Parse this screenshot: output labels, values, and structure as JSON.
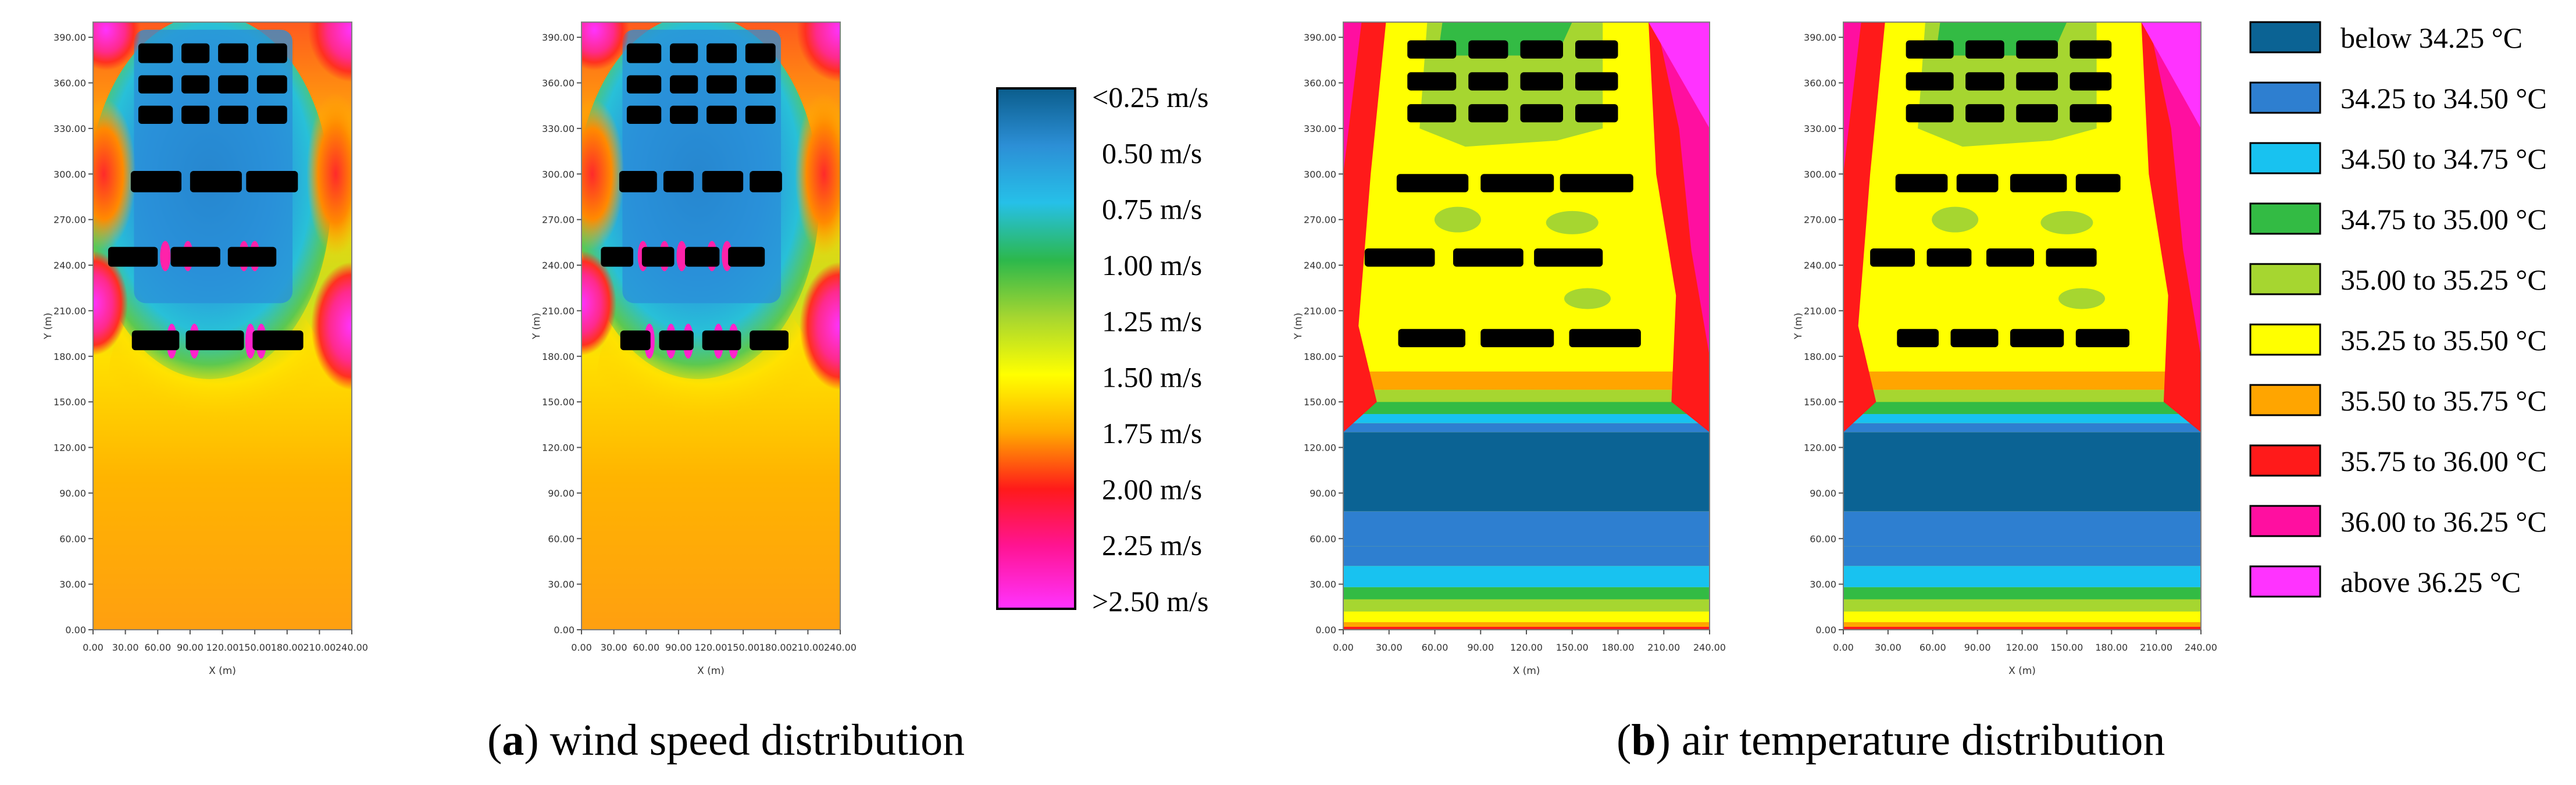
{
  "chart_data": [
    {
      "type": "heatmap",
      "panel": "a",
      "title": "wind speed distribution",
      "caption_letter": "a",
      "xlabel": "X (m)",
      "ylabel": "Y (m)",
      "xlim": [
        0,
        240
      ],
      "ylim": [
        0,
        400
      ],
      "x_ticks": [
        "0.00",
        "30.00",
        "60.00",
        "90.00",
        "120.00",
        "150.00",
        "180.00",
        "210.00",
        "240.00"
      ],
      "y_ticks": [
        "0.00",
        "30.00",
        "60.00",
        "90.00",
        "120.00",
        "150.00",
        "180.00",
        "210.00",
        "240.00",
        "270.00",
        "300.00",
        "330.00",
        "360.00",
        "390.00"
      ],
      "legend_title": "",
      "legend_labels": [
        "<0.25 m/s",
        "0.50 m/s",
        "0.75 m/s",
        "1.00 m/s",
        "1.25 m/s",
        "1.50 m/s",
        "1.75 m/s",
        "2.00 m/s",
        "2.25 m/s",
        ">2.50 m/s"
      ],
      "legend_colors": [
        "#0b5d8c",
        "#2c8fd6",
        "#26c0e8",
        "#2cb84c",
        "#a6d630",
        "#ffff00",
        "#ffaa00",
        "#ff1a1a",
        "#ff1493",
        "#ff33ff"
      ],
      "plots": [
        {
          "name": "layout-1",
          "buildings": [
            {
              "x0": 42,
              "x1": 74,
              "y0": 373,
              "y1": 386
            },
            {
              "x0": 82,
              "x1": 108,
              "y0": 373,
              "y1": 386
            },
            {
              "x0": 116,
              "x1": 144,
              "y0": 373,
              "y1": 386
            },
            {
              "x0": 152,
              "x1": 180,
              "y0": 373,
              "y1": 386
            },
            {
              "x0": 42,
              "x1": 74,
              "y0": 353,
              "y1": 365
            },
            {
              "x0": 82,
              "x1": 108,
              "y0": 353,
              "y1": 365
            },
            {
              "x0": 116,
              "x1": 144,
              "y0": 353,
              "y1": 365
            },
            {
              "x0": 152,
              "x1": 180,
              "y0": 353,
              "y1": 365
            },
            {
              "x0": 42,
              "x1": 74,
              "y0": 333,
              "y1": 345
            },
            {
              "x0": 82,
              "x1": 108,
              "y0": 333,
              "y1": 345
            },
            {
              "x0": 116,
              "x1": 144,
              "y0": 333,
              "y1": 345
            },
            {
              "x0": 152,
              "x1": 180,
              "y0": 333,
              "y1": 345
            },
            {
              "x0": 35,
              "x1": 82,
              "y0": 288,
              "y1": 302
            },
            {
              "x0": 90,
              "x1": 138,
              "y0": 288,
              "y1": 302
            },
            {
              "x0": 142,
              "x1": 190,
              "y0": 288,
              "y1": 302
            },
            {
              "x0": 14,
              "x1": 60,
              "y0": 239,
              "y1": 252
            },
            {
              "x0": 72,
              "x1": 118,
              "y0": 239,
              "y1": 252
            },
            {
              "x0": 125,
              "x1": 170,
              "y0": 239,
              "y1": 252
            },
            {
              "x0": 36,
              "x1": 80,
              "y0": 184,
              "y1": 197
            },
            {
              "x0": 86,
              "x1": 140,
              "y0": 184,
              "y1": 197
            },
            {
              "x0": 148,
              "x1": 195,
              "y0": 184,
              "y1": 197
            }
          ]
        },
        {
          "name": "layout-2",
          "buildings": [
            {
              "x0": 42,
              "x1": 74,
              "y0": 373,
              "y1": 386
            },
            {
              "x0": 82,
              "x1": 108,
              "y0": 373,
              "y1": 386
            },
            {
              "x0": 116,
              "x1": 144,
              "y0": 373,
              "y1": 386
            },
            {
              "x0": 152,
              "x1": 180,
              "y0": 373,
              "y1": 386
            },
            {
              "x0": 42,
              "x1": 74,
              "y0": 353,
              "y1": 365
            },
            {
              "x0": 82,
              "x1": 108,
              "y0": 353,
              "y1": 365
            },
            {
              "x0": 116,
              "x1": 144,
              "y0": 353,
              "y1": 365
            },
            {
              "x0": 152,
              "x1": 180,
              "y0": 353,
              "y1": 365
            },
            {
              "x0": 42,
              "x1": 74,
              "y0": 333,
              "y1": 345
            },
            {
              "x0": 82,
              "x1": 108,
              "y0": 333,
              "y1": 345
            },
            {
              "x0": 116,
              "x1": 144,
              "y0": 333,
              "y1": 345
            },
            {
              "x0": 152,
              "x1": 180,
              "y0": 333,
              "y1": 345
            },
            {
              "x0": 35,
              "x1": 70,
              "y0": 288,
              "y1": 302
            },
            {
              "x0": 76,
              "x1": 104,
              "y0": 288,
              "y1": 302
            },
            {
              "x0": 112,
              "x1": 150,
              "y0": 288,
              "y1": 302
            },
            {
              "x0": 156,
              "x1": 186,
              "y0": 288,
              "y1": 302
            },
            {
              "x0": 18,
              "x1": 48,
              "y0": 239,
              "y1": 252
            },
            {
              "x0": 56,
              "x1": 86,
              "y0": 239,
              "y1": 252
            },
            {
              "x0": 96,
              "x1": 128,
              "y0": 239,
              "y1": 252
            },
            {
              "x0": 136,
              "x1": 170,
              "y0": 239,
              "y1": 252
            },
            {
              "x0": 36,
              "x1": 64,
              "y0": 184,
              "y1": 197
            },
            {
              "x0": 72,
              "x1": 104,
              "y0": 184,
              "y1": 197
            },
            {
              "x0": 112,
              "x1": 148,
              "y0": 184,
              "y1": 197
            },
            {
              "x0": 156,
              "x1": 192,
              "y0": 184,
              "y1": 197
            }
          ]
        }
      ]
    },
    {
      "type": "heatmap",
      "panel": "b",
      "title": "air temperature distribution",
      "caption_letter": "b",
      "xlabel": "X (m)",
      "ylabel": "Y (m)",
      "xlim": [
        0,
        240
      ],
      "ylim": [
        0,
        400
      ],
      "x_ticks": [
        "0.00",
        "30.00",
        "60.00",
        "90.00",
        "120.00",
        "150.00",
        "180.00",
        "210.00",
        "240.00"
      ],
      "y_ticks": [
        "0.00",
        "30.00",
        "60.00",
        "90.00",
        "120.00",
        "150.00",
        "180.00",
        "210.00",
        "240.00",
        "270.00",
        "300.00",
        "330.00",
        "360.00",
        "390.00"
      ],
      "legend_labels": [
        "below 34.25 °C",
        "34.25 to 34.50 °C",
        "34.50 to 34.75 °C",
        "34.75 to 35.00 °C",
        "35.00 to 35.25 °C",
        "35.25 to 35.50 °C",
        "35.50 to 35.75 °C",
        "35.75 to 36.00 °C",
        "36.00 to 36.25 °C",
        "above 36.25 °C"
      ],
      "legend_colors": [
        "#0b6394",
        "#2e7fd0",
        "#18c2f0",
        "#33bb44",
        "#a6d630",
        "#ffff00",
        "#ffa500",
        "#ff1a1a",
        "#ff0fa0",
        "#ff33ff"
      ],
      "plots": [
        {
          "name": "layout-1",
          "buildings": [
            {
              "x0": 42,
              "x1": 74,
              "y0": 376,
              "y1": 388
            },
            {
              "x0": 82,
              "x1": 108,
              "y0": 376,
              "y1": 388
            },
            {
              "x0": 116,
              "x1": 144,
              "y0": 376,
              "y1": 388
            },
            {
              "x0": 152,
              "x1": 180,
              "y0": 376,
              "y1": 388
            },
            {
              "x0": 42,
              "x1": 74,
              "y0": 355,
              "y1": 367
            },
            {
              "x0": 82,
              "x1": 108,
              "y0": 355,
              "y1": 367
            },
            {
              "x0": 116,
              "x1": 144,
              "y0": 355,
              "y1": 367
            },
            {
              "x0": 152,
              "x1": 180,
              "y0": 355,
              "y1": 367
            },
            {
              "x0": 42,
              "x1": 74,
              "y0": 334,
              "y1": 346
            },
            {
              "x0": 82,
              "x1": 108,
              "y0": 334,
              "y1": 346
            },
            {
              "x0": 116,
              "x1": 144,
              "y0": 334,
              "y1": 346
            },
            {
              "x0": 152,
              "x1": 180,
              "y0": 334,
              "y1": 346
            },
            {
              "x0": 35,
              "x1": 82,
              "y0": 288,
              "y1": 300
            },
            {
              "x0": 90,
              "x1": 138,
              "y0": 288,
              "y1": 300
            },
            {
              "x0": 142,
              "x1": 190,
              "y0": 288,
              "y1": 300
            },
            {
              "x0": 14,
              "x1": 60,
              "y0": 239,
              "y1": 251
            },
            {
              "x0": 72,
              "x1": 118,
              "y0": 239,
              "y1": 251
            },
            {
              "x0": 125,
              "x1": 170,
              "y0": 239,
              "y1": 251
            },
            {
              "x0": 36,
              "x1": 80,
              "y0": 186,
              "y1": 198
            },
            {
              "x0": 90,
              "x1": 138,
              "y0": 186,
              "y1": 198
            },
            {
              "x0": 148,
              "x1": 195,
              "y0": 186,
              "y1": 198
            }
          ]
        },
        {
          "name": "layout-2",
          "buildings": [
            {
              "x0": 42,
              "x1": 74,
              "y0": 376,
              "y1": 388
            },
            {
              "x0": 82,
              "x1": 108,
              "y0": 376,
              "y1": 388
            },
            {
              "x0": 116,
              "x1": 144,
              "y0": 376,
              "y1": 388
            },
            {
              "x0": 152,
              "x1": 180,
              "y0": 376,
              "y1": 388
            },
            {
              "x0": 42,
              "x1": 74,
              "y0": 355,
              "y1": 367
            },
            {
              "x0": 82,
              "x1": 108,
              "y0": 355,
              "y1": 367
            },
            {
              "x0": 116,
              "x1": 144,
              "y0": 355,
              "y1": 367
            },
            {
              "x0": 152,
              "x1": 180,
              "y0": 355,
              "y1": 367
            },
            {
              "x0": 42,
              "x1": 74,
              "y0": 334,
              "y1": 346
            },
            {
              "x0": 82,
              "x1": 108,
              "y0": 334,
              "y1": 346
            },
            {
              "x0": 116,
              "x1": 144,
              "y0": 334,
              "y1": 346
            },
            {
              "x0": 152,
              "x1": 180,
              "y0": 334,
              "y1": 346
            },
            {
              "x0": 35,
              "x1": 70,
              "y0": 288,
              "y1": 300
            },
            {
              "x0": 76,
              "x1": 104,
              "y0": 288,
              "y1": 300
            },
            {
              "x0": 112,
              "x1": 150,
              "y0": 288,
              "y1": 300
            },
            {
              "x0": 156,
              "x1": 186,
              "y0": 288,
              "y1": 300
            },
            {
              "x0": 18,
              "x1": 48,
              "y0": 239,
              "y1": 251
            },
            {
              "x0": 56,
              "x1": 86,
              "y0": 239,
              "y1": 251
            },
            {
              "x0": 96,
              "x1": 128,
              "y0": 239,
              "y1": 251
            },
            {
              "x0": 136,
              "x1": 170,
              "y0": 239,
              "y1": 251
            },
            {
              "x0": 36,
              "x1": 64,
              "y0": 186,
              "y1": 198
            },
            {
              "x0": 72,
              "x1": 104,
              "y0": 186,
              "y1": 198
            },
            {
              "x0": 112,
              "x1": 148,
              "y0": 186,
              "y1": 198
            },
            {
              "x0": 156,
              "x1": 192,
              "y0": 186,
              "y1": 198
            }
          ]
        }
      ]
    }
  ]
}
